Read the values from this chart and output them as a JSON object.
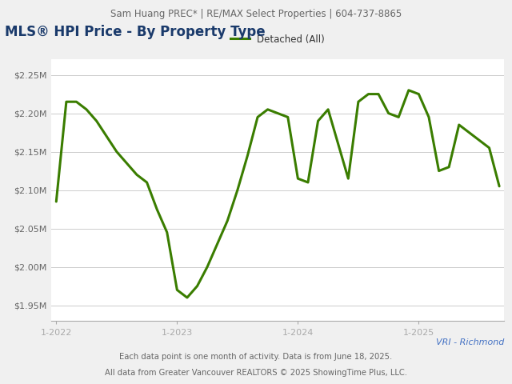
{
  "header_text": "Sam Huang PREC* | RE/MAX Select Properties | 604-737-8865",
  "title": "MLS® HPI Price - By Property Type",
  "legend_label": "Detached (All)",
  "line_color": "#3a7d00",
  "footer_line1": "VRI - Richmond",
  "footer_line2": "Each data point is one month of activity. Data is from June 18, 2025.",
  "footer_line3": "All data from Greater Vancouver REALTORS © 2025 ShowingTime Plus, LLC.",
  "x_tick_labels": [
    "1-2022",
    "1-2023",
    "1-2024",
    "1-2025"
  ],
  "ylim_bottom": 1930000,
  "ylim_top": 2270000,
  "background_color": "#f0f0f0",
  "plot_background_color": "#ffffff",
  "title_color": "#1a3a6b",
  "header_color": "#666666",
  "footer_color_vri": "#4472c4",
  "footer_color_other": "#666666",
  "values": [
    2085000,
    2215000,
    2215000,
    2205000,
    2190000,
    2170000,
    2150000,
    2135000,
    2120000,
    2110000,
    2075000,
    2045000,
    1970000,
    1960000,
    1975000,
    2000000,
    2030000,
    2060000,
    2100000,
    2145000,
    2195000,
    2205000,
    2200000,
    2195000,
    2115000,
    2110000,
    2190000,
    2205000,
    2160000,
    2115000,
    2215000,
    2225000,
    2225000,
    2200000,
    2195000,
    2230000,
    2225000,
    2195000,
    2125000,
    2130000,
    2185000,
    2175000,
    2165000,
    2155000,
    2105000
  ],
  "x_tick_positions": [
    0,
    12,
    24,
    36
  ],
  "y_ticks": [
    1950000,
    2000000,
    2050000,
    2100000,
    2150000,
    2200000,
    2250000
  ]
}
